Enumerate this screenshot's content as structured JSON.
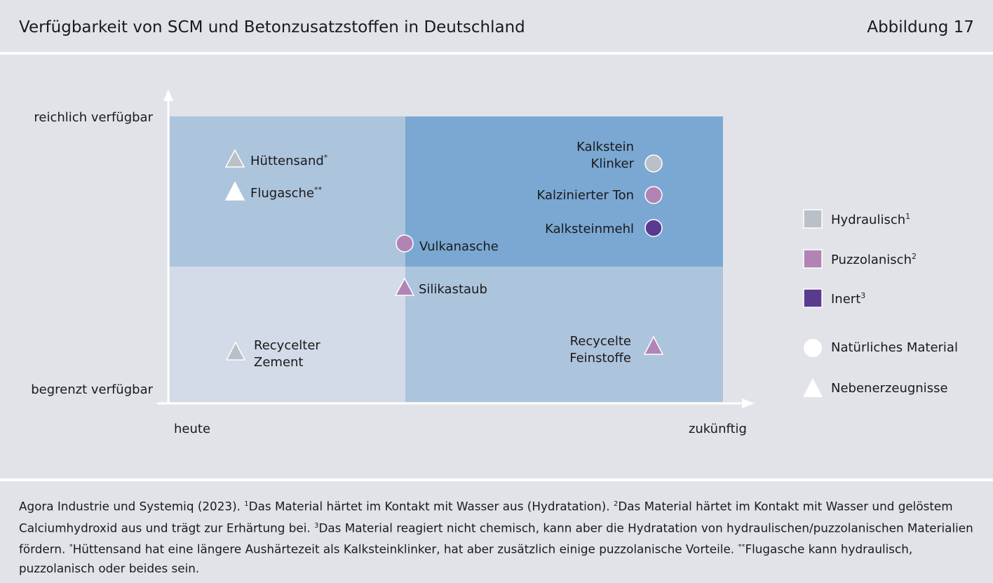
{
  "header": {
    "title": "Verfügbarkeit von SCM und Betonzusatzstoffen in Deutschland",
    "figure_number": "Abbildung 17"
  },
  "axes": {
    "y_top": "reichlich verfügbar",
    "y_bottom": "begrenzt verfügbar",
    "x_left": "heute",
    "x_right": "zukünftig"
  },
  "colors": {
    "quadrant_top_left": "#adc4dd",
    "quadrant_top_right": "#7aa8d2",
    "quadrant_bottom_left": "#d2dbe7",
    "quadrant_bottom_right": "#adc4dd",
    "hydraulisch": "#b9c0c7",
    "puzzolanisch": "#b184b5",
    "inert": "#5a3a8f",
    "white": "#ffffff"
  },
  "items": [
    {
      "label": "Hüttensand",
      "sup": "*",
      "shape": "triangle",
      "color": "hydraulisch"
    },
    {
      "label": "Flugasche",
      "sup": "**",
      "shape": "triangle",
      "color": "white"
    },
    {
      "label": "Vulkanasche",
      "sup": "",
      "shape": "circle",
      "color": "puzzolanisch"
    },
    {
      "label": "Silikastaub",
      "sup": "",
      "shape": "triangle",
      "color": "puzzolanisch"
    },
    {
      "label": [
        "Recycelter",
        "Zement"
      ],
      "sup": "",
      "shape": "triangle",
      "color": "hydraulisch"
    },
    {
      "label": [
        "Kalkstein",
        "Klinker"
      ],
      "sup": "",
      "shape": "circle",
      "color": "hydraulisch"
    },
    {
      "label": "Kalzinierter Ton",
      "sup": "",
      "shape": "circle",
      "color": "puzzolanisch"
    },
    {
      "label": "Kalksteinmehl",
      "sup": "",
      "shape": "circle",
      "color": "inert"
    },
    {
      "label": [
        "Recycelte",
        "Feinstoffe"
      ],
      "sup": "",
      "shape": "triangle",
      "color": "puzzolanisch"
    }
  ],
  "legend": [
    {
      "label": "Hydraulisch",
      "sup": "1",
      "shape": "square",
      "color": "hydraulisch"
    },
    {
      "label": "Puzzolanisch",
      "sup": "2",
      "shape": "square",
      "color": "puzzolanisch"
    },
    {
      "label": "Inert",
      "sup": "3",
      "shape": "square",
      "color": "inert"
    },
    {
      "label": "Natürliches Material",
      "sup": "",
      "shape": "circle",
      "color": "white"
    },
    {
      "label": "Nebenerzeugnisse",
      "sup": "",
      "shape": "triangle",
      "color": "white"
    }
  ],
  "footnote": {
    "source": "Agora Industrie und Systemiq (2023).",
    "n1": "Das Material härtet im Kontakt mit Wasser aus (Hydratation).",
    "n2": "Das Material härtet im Kontakt mit Wasser und gelöstem Calciumhydroxid aus und trägt zur Erhärtung bei.",
    "n3": "Das Material reagiert nicht chemisch, kann aber die Hydratation von hydraulischen/puzzolanischen Materialien fördern.",
    "n4": "Hüttensand hat eine längere Aushärtezeit als Kalksteinklinker, hat aber zusätzlich einige puzzolanische Vorteile.",
    "n5": "Flugasche kann hydraulisch, puzzolanisch oder beides sein."
  }
}
